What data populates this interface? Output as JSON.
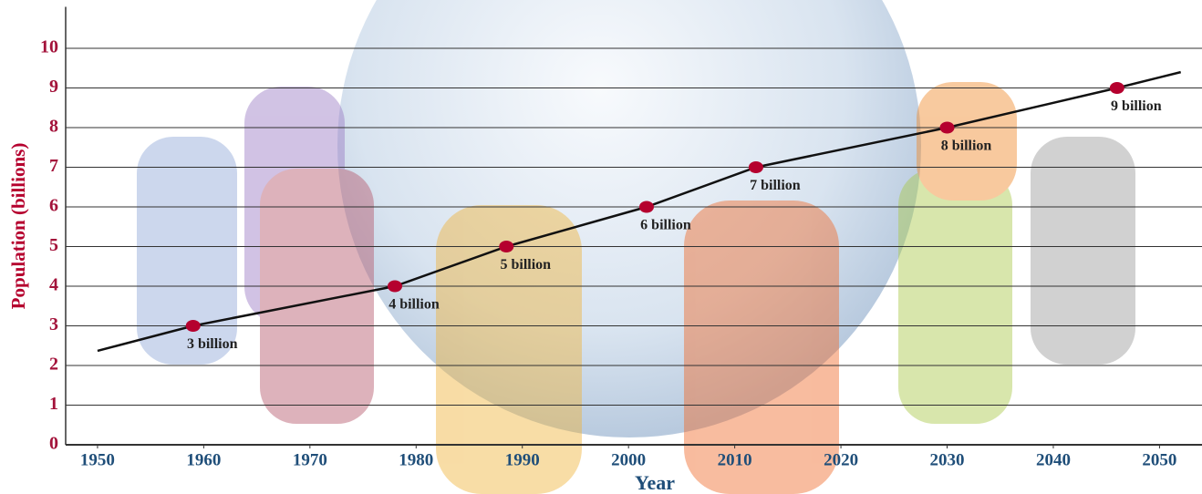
{
  "chart_data": {
    "type": "line",
    "x_label": "Year",
    "y_label": "Population (billions)",
    "xlim": [
      1947,
      2054
    ],
    "ylim": [
      0,
      11
    ],
    "xticks": [
      1950,
      1960,
      1970,
      1980,
      1990,
      2000,
      2010,
      2020,
      2030,
      2040,
      2050
    ],
    "yticks": [
      0,
      1,
      2,
      3,
      4,
      5,
      6,
      7,
      8,
      9,
      10
    ],
    "grid": true,
    "trend": {
      "color": "#111111",
      "x": [
        1950,
        1959,
        1978,
        1988.5,
        2001.7,
        2012,
        2030,
        2046,
        2052
      ],
      "values": [
        2.37,
        3,
        4,
        5,
        6,
        7,
        8,
        9,
        9.4
      ]
    },
    "points": {
      "color": "#b5002e",
      "x": [
        1959,
        1978,
        1988.5,
        2001.7,
        2012,
        2030,
        2046
      ],
      "values": [
        3,
        4,
        5,
        6,
        7,
        8,
        9
      ],
      "value_labels": [
        "3 billion",
        "4 billion",
        "5 billion",
        "6 billion",
        "7 billion",
        "8 billion",
        "9 billion"
      ]
    }
  }
}
